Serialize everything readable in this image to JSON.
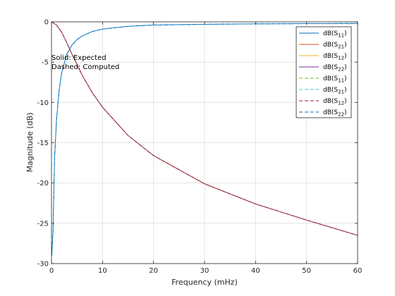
{
  "chart_data": {
    "type": "line",
    "xlabel": "Frequency (mHz)",
    "ylabel": "Magnitude (dB)",
    "xlim": [
      0,
      60
    ],
    "ylim": [
      -30,
      0
    ],
    "x_ticks": [
      0,
      10,
      20,
      30,
      40,
      50,
      60
    ],
    "y_ticks": [
      0,
      -5,
      -10,
      -15,
      -20,
      -25,
      -30
    ],
    "grid": true,
    "legend_placement": "top-right",
    "annotations": [
      "Solid: Expected",
      "Dashed: Computed"
    ],
    "series": [
      {
        "prefix": "dB(S",
        "sub": "11",
        "suffix": ")",
        "color": "#0072bd",
        "style": "solid",
        "x": [
          0.05,
          0.3,
          0.6,
          1,
          1.5,
          2,
          3,
          4,
          5,
          6,
          8,
          10,
          15,
          20,
          30,
          40,
          50,
          60
        ],
        "y": [
          -29,
          -26,
          -17,
          -12,
          -8.5,
          -6.3,
          -4,
          -2.9,
          -2.2,
          -1.75,
          -1.2,
          -0.9,
          -0.55,
          -0.4,
          -0.3,
          -0.25,
          -0.22,
          -0.2
        ]
      },
      {
        "prefix": "dB(S",
        "sub": "21",
        "suffix": ")",
        "color": "#d95319",
        "style": "solid",
        "x": [
          0,
          1,
          2,
          3,
          4,
          5,
          6,
          8,
          10,
          15,
          20,
          30,
          40,
          50,
          60
        ],
        "y": [
          0,
          -0.4,
          -1.3,
          -2.6,
          -4,
          -5.3,
          -6.6,
          -8.8,
          -10.6,
          -14.1,
          -16.6,
          -20.1,
          -22.6,
          -24.6,
          -26.5
        ]
      },
      {
        "prefix": "dB(S",
        "sub": "12",
        "suffix": ")",
        "color": "#edb120",
        "style": "solid",
        "x": [
          0,
          1,
          2,
          3,
          4,
          5,
          6,
          8,
          10,
          15,
          20,
          30,
          40,
          50,
          60
        ],
        "y": [
          0,
          -0.4,
          -1.3,
          -2.6,
          -4,
          -5.3,
          -6.6,
          -8.8,
          -10.6,
          -14.1,
          -16.6,
          -20.1,
          -22.6,
          -24.6,
          -26.5
        ]
      },
      {
        "prefix": "dB(S",
        "sub": "22",
        "suffix": ")",
        "color": "#7e2f8e",
        "style": "solid",
        "x": [
          0,
          1,
          2,
          3,
          4,
          5,
          6,
          8,
          10,
          15,
          20,
          30,
          40,
          50,
          60
        ],
        "y": [
          0,
          -0.4,
          -1.3,
          -2.6,
          -4,
          -5.3,
          -6.6,
          -8.8,
          -10.6,
          -14.1,
          -16.6,
          -20.1,
          -22.6,
          -24.6,
          -26.5
        ]
      },
      {
        "prefix": "dB(S",
        "sub": "11",
        "suffix": ")",
        "color": "#77ac30",
        "style": "dashed",
        "x": [
          0,
          1,
          2,
          3,
          4,
          5,
          6,
          8,
          10,
          15,
          20,
          30,
          40,
          50,
          60
        ],
        "y": [
          0,
          -0.4,
          -1.3,
          -2.6,
          -4,
          -5.3,
          -6.6,
          -8.8,
          -10.6,
          -14.1,
          -16.6,
          -20.1,
          -22.6,
          -24.6,
          -26.5
        ]
      },
      {
        "prefix": "dB(S",
        "sub": "21",
        "suffix": ")",
        "color": "#4dbeee",
        "style": "dashed",
        "x": [
          0.05,
          0.3,
          0.6,
          1,
          1.5,
          2,
          3,
          4,
          5,
          6,
          8,
          10,
          15,
          20,
          30,
          40,
          50,
          60
        ],
        "y": [
          -29,
          -26,
          -17,
          -12,
          -8.5,
          -6.3,
          -4,
          -2.9,
          -2.2,
          -1.75,
          -1.2,
          -0.9,
          -0.55,
          -0.4,
          -0.3,
          -0.25,
          -0.22,
          -0.2
        ]
      },
      {
        "prefix": "dB(S",
        "sub": "12",
        "suffix": ")",
        "color": "#a2142f",
        "style": "dashed",
        "x": [
          0,
          1,
          2,
          3,
          4,
          5,
          6,
          8,
          10,
          15,
          20,
          30,
          40,
          50,
          60
        ],
        "y": [
          0,
          -0.4,
          -1.3,
          -2.6,
          -4,
          -5.3,
          -6.6,
          -8.8,
          -10.6,
          -14.1,
          -16.6,
          -20.1,
          -22.6,
          -24.6,
          -26.5
        ]
      },
      {
        "prefix": "dB(S",
        "sub": "22",
        "suffix": ")",
        "color": "#0072bd",
        "style": "dashed",
        "x": [
          0.05,
          0.3,
          0.6,
          1,
          1.5,
          2,
          3,
          4,
          5,
          6,
          8,
          10,
          15,
          20,
          30,
          40,
          50,
          60
        ],
        "y": [
          -29,
          -26,
          -17,
          -12,
          -8.5,
          -6.3,
          -4,
          -2.9,
          -2.2,
          -1.75,
          -1.2,
          -0.9,
          -0.55,
          -0.4,
          -0.3,
          -0.25,
          -0.22,
          -0.2
        ]
      }
    ]
  }
}
